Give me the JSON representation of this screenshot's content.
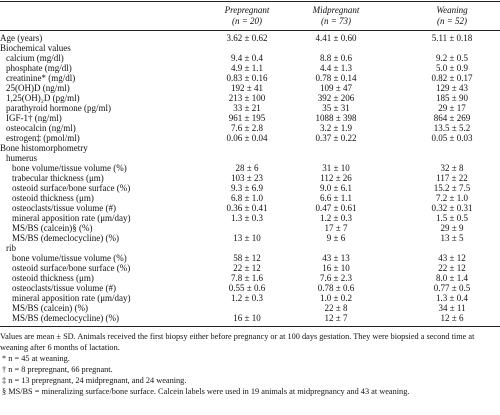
{
  "table": {
    "columns": [
      {
        "name": "Prepregnant",
        "n": "(n = 20)"
      },
      {
        "name": "Midpregnant",
        "n": "(n = 73)"
      },
      {
        "name": "Weaning",
        "n": "(n = 52)"
      }
    ],
    "rows": [
      {
        "label": "Age (years)",
        "cells": [
          "3.62 ± 0.62",
          "4.41 ± 0.60",
          "5.11 ± 0.18"
        ]
      },
      {
        "label": "Biochemical values",
        "rows": [
          {
            "label": "calcium (mg/dl)",
            "cells": [
              "9.4 ± 0.4",
              "8.8 ± 0.6",
              "9.2 ± 0.5"
            ]
          },
          {
            "label": "phosphate (mg/dl)",
            "cells": [
              "4.9 ± 1.1",
              "4.4 ± 1.3",
              "5.0 ± 0.9"
            ]
          },
          {
            "label": "creatinine* (mg/dl)",
            "cells": [
              "0.83 ± 0.16",
              "0.78 ± 0.14",
              "0.82 ± 0.17"
            ]
          },
          {
            "label": "25(OH)D (ng/ml)",
            "cells": [
              "192 ± 41",
              "109 ± 47",
              "129 ± 43"
            ]
          },
          {
            "label": "1,25(OH)₂D (pg/ml)",
            "cells": [
              "213 ± 100",
              "392 ± 206",
              "185 ± 90"
            ]
          },
          {
            "label": "parathyroid hormone (pg/ml)",
            "cells": [
              "33 ± 21",
              "35 ± 31",
              "29 ± 17"
            ]
          },
          {
            "label": "IGF-1† (ng/ml)",
            "cells": [
              "961 ± 195",
              "1088 ± 398",
              "864 ± 269"
            ]
          },
          {
            "label": "osteocalcin (ng/ml)",
            "cells": [
              "7.6 ± 2.8",
              "3.2 ± 1.9",
              "13.5 ± 5.2"
            ]
          },
          {
            "label": "estrogen‡ (pmol/ml)",
            "cells": [
              "0.06 ± 0.04",
              "0.37 ± 0.22",
              "0.05 ± 0.03"
            ]
          }
        ]
      },
      {
        "label": "Bone histomorphometry",
        "rows": [
          {
            "label": "humerus",
            "rows": [
              {
                "label": "bone volume/tissue volume (%)",
                "cells": [
                  "28 ± 6",
                  "31 ± 10",
                  "32 ± 8"
                ]
              },
              {
                "label": "trabecular thickness (μm)",
                "cells": [
                  "103 ± 23",
                  "112 ± 26",
                  "117 ± 22"
                ]
              },
              {
                "label": "osteoid surface/bone surface (%)",
                "cells": [
                  "9.3 ± 6.9",
                  "9.0 ± 6.1",
                  "15.2 ± 7.5"
                ]
              },
              {
                "label": "osteoid thickness (μm)",
                "cells": [
                  "6.8 ± 1.0",
                  "6.6 ± 1.1",
                  "7.2 ± 1.0"
                ]
              },
              {
                "label": "osteoclasts/tissue volume (#)",
                "cells": [
                  "0.36 ± 0.41",
                  "0.47 ± 0.61",
                  "0.32 ± 0.31"
                ]
              },
              {
                "label": "mineral apposition rate (μm/day)",
                "cells": [
                  "1.3 ± 0.3",
                  "1.2 ± 0.3",
                  "1.5 ± 0.5"
                ]
              },
              {
                "label": "MS/BS (calcein)§ (%)",
                "cells": [
                  null,
                  "17 ± 7",
                  "29 ± 9"
                ]
              },
              {
                "label": "MS/BS (demeclocycline) (%)",
                "cells": [
                  "13 ± 10",
                  "9 ± 6",
                  "13 ± 5"
                ]
              }
            ]
          },
          {
            "label": "rib",
            "rows": [
              {
                "label": "bone volume/tissue volume (%)",
                "cells": [
                  "58 ± 12",
                  "43 ± 13",
                  "43 ± 12"
                ]
              },
              {
                "label": "osteoid surface/bone surface (%)",
                "cells": [
                  "22 ± 12",
                  "16 ± 10",
                  "22 ± 12"
                ]
              },
              {
                "label": "osteoid thickness (μm)",
                "cells": [
                  "7.8 ± 1.6",
                  "7.6 ± 2.3",
                  "8.0 ± 1.4"
                ]
              },
              {
                "label": "osteoclasts/tissue volume (#)",
                "cells": [
                  "0.55 ± 0.6",
                  "0.78 ± 0.6",
                  "0.77 ± 0.5"
                ]
              },
              {
                "label": "mineral apposition rate (μm/day)",
                "cells": [
                  "1.2 ± 0.3",
                  "1.0 ± 0.2",
                  "1.3 ± 0.4"
                ]
              },
              {
                "label": "MS/BS (calcein) (%)",
                "cells": [
                  null,
                  "22 ± 8",
                  "34 ± 11"
                ]
              },
              {
                "label": "MS/BS (demeclocycline) (%)",
                "cells": [
                  "16 ± 10",
                  "12 ± 7",
                  "12 ± 6"
                ]
              }
            ]
          }
        ]
      }
    ],
    "notes": [
      "Values are mean ± SD. Animals received the first biopsy either before pregnancy or at 100 days gestation. They were biopsied a second time at weaning after 6 months of lactation.",
      "* n = 45 at weaning.",
      "† n = 8 prepregnant, 66 pregnant.",
      "‡ n = 13 prepregnant, 24 midpregnant, and 24 weaning.",
      "§ MS/BS = mineralizing surface/bone surface. Calcein labels were used in 19 animals at midpregnancy and 43 at weaning."
    ]
  }
}
